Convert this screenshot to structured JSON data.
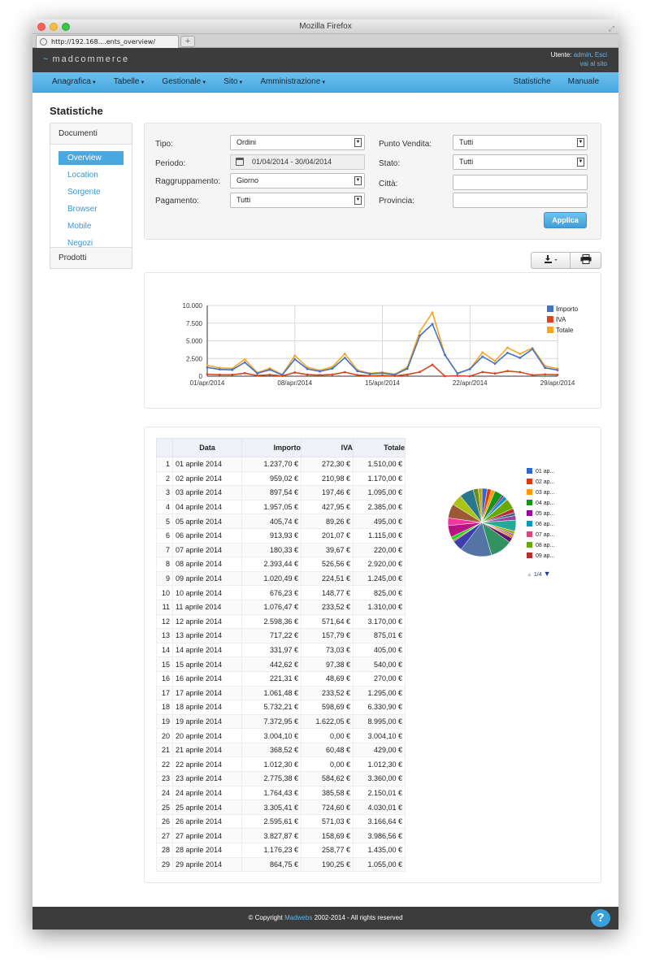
{
  "browser": {
    "window_title": "Mozilla Firefox",
    "tab_title": "http://192.168....ents_overview/",
    "new_tab": "+"
  },
  "app": {
    "logo": "madcommerce",
    "user_label": "Utente:",
    "user_name": "admin",
    "sep": ". ",
    "logout": "Esci",
    "site_link": "vai al sito"
  },
  "nav": {
    "left": [
      "Anagrafica",
      "Tabelle",
      "Gestionale",
      "Sito",
      "Amministrazione"
    ],
    "right": [
      "Statistiche",
      "Manuale"
    ]
  },
  "page": {
    "title": "Statistiche"
  },
  "sidebar": {
    "docs_header": "Documenti",
    "items": [
      "Overview",
      "Location",
      "Sorgente",
      "Browser",
      "Mobile",
      "Negozi"
    ],
    "products_header": "Prodotti"
  },
  "filters": {
    "tipo_label": "Tipo:",
    "tipo_value": "Ordini",
    "periodo_label": "Periodo:",
    "periodo_value": "01/04/2014 - 30/04/2014",
    "raggr_label": "Raggruppamento:",
    "raggr_value": "Giorno",
    "pagamento_label": "Pagamento:",
    "pagamento_value": "Tutti",
    "pv_label": "Punto Vendita:",
    "pv_value": "Tutti",
    "stato_label": "Stato:",
    "stato_value": "Tutti",
    "citta_label": "Città:",
    "citta_value": "",
    "provincia_label": "Provincia:",
    "provincia_value": "",
    "apply": "Applica"
  },
  "chart_data": [
    {
      "type": "line",
      "x": [
        "01/apr/2014",
        "02/apr/2014",
        "03/apr/2014",
        "04/apr/2014",
        "05/apr/2014",
        "06/apr/2014",
        "07/apr/2014",
        "08/apr/2014",
        "09/apr/2014",
        "10/apr/2014",
        "11/apr/2014",
        "12/apr/2014",
        "13/apr/2014",
        "14/apr/2014",
        "15/apr/2014",
        "16/apr/2014",
        "17/apr/2014",
        "18/apr/2014",
        "19/apr/2014",
        "20/apr/2014",
        "21/apr/2014",
        "22/apr/2014",
        "23/apr/2014",
        "24/apr/2014",
        "25/apr/2014",
        "26/apr/2014",
        "27/apr/2014",
        "28/apr/2014",
        "29/apr/2014"
      ],
      "x_tick_labels": [
        "01/apr/2014",
        "08/apr/2014",
        "15/apr/2014",
        "22/apr/2014",
        "29/apr/2014"
      ],
      "y_tick_labels": [
        "0",
        "2.500",
        "5.000",
        "7.500",
        "10.000"
      ],
      "ylim": [
        0,
        10000
      ],
      "grid": true,
      "legend_position": "right",
      "series": [
        {
          "name": "Importo",
          "color": "#4472c4",
          "values": [
            1237.7,
            959.02,
            897.54,
            1957.05,
            405.74,
            913.93,
            180.33,
            2393.44,
            1020.49,
            676.23,
            1076.47,
            2598.36,
            717.22,
            331.97,
            442.62,
            221.31,
            1061.48,
            5732.21,
            7372.95,
            3004.1,
            368.52,
            1012.3,
            2775.38,
            1764.43,
            3305.41,
            2595.61,
            3827.87,
            1176.23,
            864.75
          ]
        },
        {
          "name": "IVA",
          "color": "#d9461e",
          "values": [
            272.3,
            210.98,
            197.46,
            427.95,
            89.26,
            201.07,
            39.67,
            526.56,
            224.51,
            148.77,
            233.52,
            571.64,
            157.79,
            73.03,
            97.38,
            48.69,
            233.52,
            598.69,
            1622.05,
            0.0,
            60.48,
            0.0,
            584.62,
            385.58,
            724.6,
            571.03,
            158.69,
            258.77,
            190.25
          ]
        },
        {
          "name": "Totale",
          "color": "#f5a623",
          "values": [
            1510.0,
            1170.0,
            1095.0,
            2385.0,
            495.0,
            1115.0,
            220.0,
            2920.0,
            1245.0,
            825.0,
            1310.0,
            3170.0,
            875.01,
            405.0,
            540.0,
            270.0,
            1295.0,
            6330.9,
            8995.0,
            3004.1,
            429.0,
            1012.3,
            3360.0,
            2150.01,
            4030.01,
            3166.64,
            3986.56,
            1435.0,
            1055.0
          ]
        }
      ]
    },
    {
      "type": "pie",
      "categories": [
        "01 ap...",
        "02 ap...",
        "03 ap...",
        "04 ap...",
        "05 ap...",
        "06 ap...",
        "07 ap...",
        "08 ap...",
        "09 ap..."
      ],
      "all_values": [
        1510.0,
        1170.0,
        1095.0,
        2385.0,
        495.0,
        1115.0,
        220.0,
        2920.0,
        1245.0,
        825.0,
        1310.0,
        3170.0,
        875.01,
        405.0,
        540.0,
        270.0,
        1295.0,
        6330.9,
        8995.0,
        3004.1,
        429.0,
        1012.3,
        3360.0,
        2150.01,
        4030.01,
        3166.64,
        3986.56,
        1435.0,
        1055.0
      ],
      "colors": [
        "#3366cc",
        "#dc3912",
        "#ff9900",
        "#109618",
        "#990099",
        "#0099c6",
        "#dd4477",
        "#66aa00",
        "#b82e2e",
        "#316395",
        "#994499",
        "#22aa99",
        "#aaaa11",
        "#6633cc",
        "#e67300",
        "#8b0707",
        "#651067",
        "#329262",
        "#5574a6",
        "#3b3eac",
        "#b77322",
        "#16d620",
        "#b91383",
        "#f4359e",
        "#9c5935",
        "#a9c413",
        "#2a778d",
        "#668d1c",
        "#bea413"
      ],
      "legend_position": "right",
      "pagination": "1/4"
    }
  ],
  "table": {
    "headers": [
      "",
      "Data",
      "Importo",
      "IVA",
      "Totale"
    ],
    "rows": [
      [
        "1",
        "01 aprile 2014",
        "1.237,70 €",
        "272,30 €",
        "1.510,00 €"
      ],
      [
        "2",
        "02 aprile 2014",
        "959,02 €",
        "210,98 €",
        "1.170,00 €"
      ],
      [
        "3",
        "03 aprile 2014",
        "897,54 €",
        "197,46 €",
        "1.095,00 €"
      ],
      [
        "4",
        "04 aprile 2014",
        "1.957,05 €",
        "427,95 €",
        "2.385,00 €"
      ],
      [
        "5",
        "05 aprile 2014",
        "405,74 €",
        "89,26 €",
        "495,00 €"
      ],
      [
        "6",
        "06 aprile 2014",
        "913,93 €",
        "201,07 €",
        "1.115,00 €"
      ],
      [
        "7",
        "07 aprile 2014",
        "180,33 €",
        "39,67 €",
        "220,00 €"
      ],
      [
        "8",
        "08 aprile 2014",
        "2.393,44 €",
        "526,56 €",
        "2.920,00 €"
      ],
      [
        "9",
        "09 aprile 2014",
        "1.020,49 €",
        "224,51 €",
        "1.245,00 €"
      ],
      [
        "10",
        "10 aprile 2014",
        "676,23 €",
        "148,77 €",
        "825,00 €"
      ],
      [
        "11",
        "11 aprile 2014",
        "1.076,47 €",
        "233,52 €",
        "1.310,00 €"
      ],
      [
        "12",
        "12 aprile 2014",
        "2.598,36 €",
        "571,64 €",
        "3.170,00 €"
      ],
      [
        "13",
        "13 aprile 2014",
        "717,22 €",
        "157,79 €",
        "875,01 €"
      ],
      [
        "14",
        "14 aprile 2014",
        "331,97 €",
        "73,03 €",
        "405,00 €"
      ],
      [
        "15",
        "15 aprile 2014",
        "442,62 €",
        "97,38 €",
        "540,00 €"
      ],
      [
        "16",
        "16 aprile 2014",
        "221,31 €",
        "48,69 €",
        "270,00 €"
      ],
      [
        "17",
        "17 aprile 2014",
        "1.061,48 €",
        "233,52 €",
        "1.295,00 €"
      ],
      [
        "18",
        "18 aprile 2014",
        "5.732,21 €",
        "598,69 €",
        "6.330,90 €"
      ],
      [
        "19",
        "19 aprile 2014",
        "7.372,95 €",
        "1.622,05 €",
        "8.995,00 €"
      ],
      [
        "20",
        "20 aprile 2014",
        "3.004,10 €",
        "0,00 €",
        "3.004,10 €"
      ],
      [
        "21",
        "21 aprile 2014",
        "368,52 €",
        "60,48 €",
        "429,00 €"
      ],
      [
        "22",
        "22 aprile 2014",
        "1.012,30 €",
        "0,00 €",
        "1.012,30 €"
      ],
      [
        "23",
        "23 aprile 2014",
        "2.775,38 €",
        "584,62 €",
        "3.360,00 €"
      ],
      [
        "24",
        "24 aprile 2014",
        "1.764,43 €",
        "385,58 €",
        "2.150,01 €"
      ],
      [
        "25",
        "25 aprile 2014",
        "3.305,41 €",
        "724,60 €",
        "4.030,01 €"
      ],
      [
        "26",
        "26 aprile 2014",
        "2.595,61 €",
        "571,03 €",
        "3.166,64 €"
      ],
      [
        "27",
        "27 aprile 2014",
        "3.827,87 €",
        "158,69 €",
        "3.986,56 €"
      ],
      [
        "28",
        "28 aprile 2014",
        "1.176,23 €",
        "258,77 €",
        "1.435,00 €"
      ],
      [
        "29",
        "29 aprile 2014",
        "864,75 €",
        "190,25 €",
        "1.055,00 €"
      ]
    ]
  },
  "footer": {
    "prefix": "© Copyright",
    "company": "Madwebs",
    "suffix": "2002-2014 - All rights reserved",
    "help": "?"
  }
}
